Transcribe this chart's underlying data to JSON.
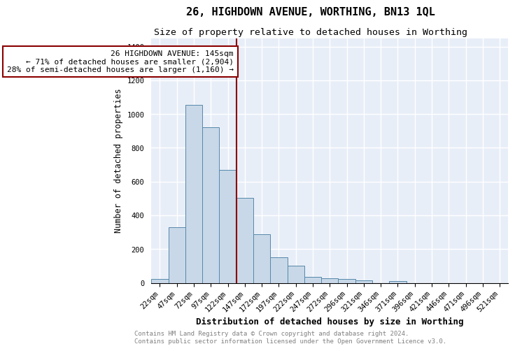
{
  "title": "26, HIGHDOWN AVENUE, WORTHING, BN13 1QL",
  "subtitle": "Size of property relative to detached houses in Worthing",
  "xlabel": "Distribution of detached houses by size in Worthing",
  "ylabel": "Number of detached properties",
  "bar_labels": [
    "22sqm",
    "47sqm",
    "72sqm",
    "97sqm",
    "122sqm",
    "147sqm",
    "172sqm",
    "197sqm",
    "222sqm",
    "247sqm",
    "272sqm",
    "296sqm",
    "321sqm",
    "346sqm",
    "371sqm",
    "396sqm",
    "421sqm",
    "446sqm",
    "471sqm",
    "496sqm",
    "521sqm"
  ],
  "bar_values": [
    22,
    330,
    1055,
    920,
    670,
    505,
    290,
    150,
    100,
    37,
    25,
    22,
    15,
    0,
    12,
    0,
    0,
    0,
    0,
    0,
    0
  ],
  "bar_color": "#c8d8e8",
  "bar_edgecolor": "#5588aa",
  "highlight_index": 5,
  "highlight_color": "#8b0000",
  "annotation_text": "26 HIGHDOWN AVENUE: 145sqm\n← 71% of detached houses are smaller (2,904)\n28% of semi-detached houses are larger (1,160) →",
  "annotation_box_color": "white",
  "annotation_box_edgecolor": "#8b0000",
  "ylim": [
    0,
    1450
  ],
  "yticks": [
    0,
    200,
    400,
    600,
    800,
    1000,
    1200,
    1400
  ],
  "footer_text": "Contains HM Land Registry data © Crown copyright and database right 2024.\nContains public sector information licensed under the Open Government Licence v3.0.",
  "background_color": "#e8eef8",
  "grid_color": "white",
  "title_fontsize": 11,
  "subtitle_fontsize": 9.5,
  "xlabel_fontsize": 9,
  "ylabel_fontsize": 8.5,
  "tick_fontsize": 7.5,
  "annotation_fontsize": 8,
  "footer_fontsize": 6.5
}
